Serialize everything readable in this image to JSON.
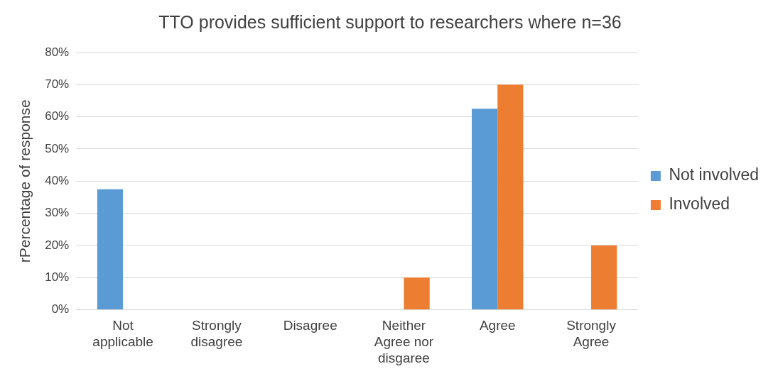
{
  "chart_data": {
    "type": "bar",
    "title": "TTO provides sufficient support to researchers where n=36",
    "ylabel": "rPercentage of response",
    "categories": [
      "Not applicable",
      "Strongly disagree",
      "Disagree",
      "Neither Agree nor disgaree",
      "Agree",
      "Strongly Agree"
    ],
    "series": [
      {
        "name": "Not involved",
        "color": "#5b9bd5",
        "values": [
          37.5,
          0,
          0,
          0,
          62.5,
          0
        ]
      },
      {
        "name": "Involved",
        "color": "#ed7d31",
        "values": [
          0,
          0,
          0,
          10,
          70,
          20
        ]
      }
    ],
    "ylim": [
      0,
      80
    ],
    "yticks": [
      {
        "value": 0,
        "label": "0%"
      },
      {
        "value": 10,
        "label": "10%"
      },
      {
        "value": 20,
        "label": "20%"
      },
      {
        "value": 30,
        "label": "30%"
      },
      {
        "value": 40,
        "label": "40%"
      },
      {
        "value": 50,
        "label": "50%"
      },
      {
        "value": 60,
        "label": "60%"
      },
      {
        "value": 70,
        "label": "70%"
      },
      {
        "value": 80,
        "label": "80%"
      }
    ],
    "grid": "y",
    "legend": "right"
  }
}
